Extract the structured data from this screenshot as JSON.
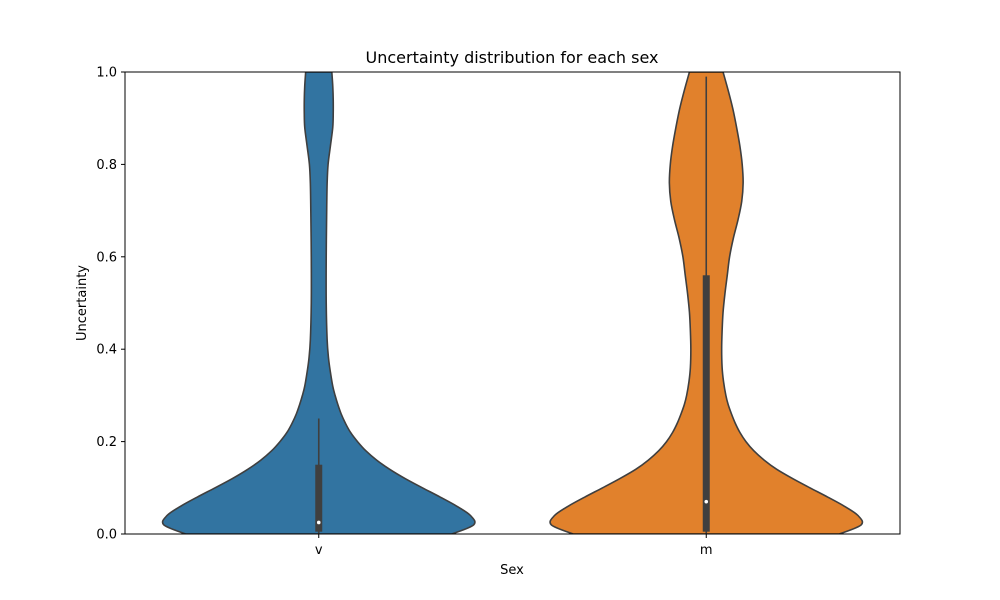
{
  "chart_data": {
    "type": "violin",
    "title": "Uncertainty distribution for each sex",
    "xlabel": "Sex",
    "ylabel": "Uncertainty",
    "ylim": [
      0,
      1
    ],
    "yticks": [
      "0.0",
      "0.2",
      "0.4",
      "0.6",
      "0.8",
      "1.0"
    ],
    "grid": false,
    "categories": [
      "v",
      "m"
    ],
    "series": [
      {
        "category": "v",
        "color": "#3274a1",
        "density": [
          [
            0.0,
            0.285
          ],
          [
            0.02,
            0.332
          ],
          [
            0.04,
            0.325
          ],
          [
            0.06,
            0.296
          ],
          [
            0.08,
            0.26
          ],
          [
            0.1,
            0.222
          ],
          [
            0.12,
            0.185
          ],
          [
            0.14,
            0.152
          ],
          [
            0.16,
            0.124
          ],
          [
            0.18,
            0.101
          ],
          [
            0.2,
            0.083
          ],
          [
            0.22,
            0.068
          ],
          [
            0.24,
            0.057
          ],
          [
            0.26,
            0.048
          ],
          [
            0.28,
            0.041
          ],
          [
            0.3,
            0.035
          ],
          [
            0.32,
            0.03
          ],
          [
            0.35,
            0.025
          ],
          [
            0.38,
            0.021
          ],
          [
            0.42,
            0.018
          ],
          [
            0.5,
            0.016
          ],
          [
            0.6,
            0.016
          ],
          [
            0.7,
            0.017
          ],
          [
            0.76,
            0.018
          ],
          [
            0.8,
            0.02
          ],
          [
            0.84,
            0.025
          ],
          [
            0.88,
            0.03
          ],
          [
            0.91,
            0.031
          ],
          [
            0.94,
            0.031
          ],
          [
            0.97,
            0.03
          ],
          [
            1.0,
            0.028
          ]
        ],
        "median": 0.025,
        "q1": 0.005,
        "q3": 0.15,
        "whisker_low": 0.0,
        "whisker_high": 0.25
      },
      {
        "category": "m",
        "color": "#e1812c",
        "density": [
          [
            0.0,
            0.285
          ],
          [
            0.02,
            0.332
          ],
          [
            0.04,
            0.325
          ],
          [
            0.06,
            0.296
          ],
          [
            0.08,
            0.26
          ],
          [
            0.1,
            0.222
          ],
          [
            0.12,
            0.185
          ],
          [
            0.14,
            0.151
          ],
          [
            0.16,
            0.124
          ],
          [
            0.18,
            0.102
          ],
          [
            0.2,
            0.085
          ],
          [
            0.22,
            0.072
          ],
          [
            0.24,
            0.062
          ],
          [
            0.26,
            0.054
          ],
          [
            0.28,
            0.047
          ],
          [
            0.3,
            0.042
          ],
          [
            0.33,
            0.037
          ],
          [
            0.36,
            0.034
          ],
          [
            0.4,
            0.033
          ],
          [
            0.44,
            0.034
          ],
          [
            0.48,
            0.036
          ],
          [
            0.52,
            0.04
          ],
          [
            0.56,
            0.045
          ],
          [
            0.6,
            0.05
          ],
          [
            0.64,
            0.058
          ],
          [
            0.68,
            0.068
          ],
          [
            0.72,
            0.076
          ],
          [
            0.76,
            0.079
          ],
          [
            0.8,
            0.077
          ],
          [
            0.84,
            0.072
          ],
          [
            0.88,
            0.065
          ],
          [
            0.92,
            0.057
          ],
          [
            0.96,
            0.047
          ],
          [
            1.0,
            0.036
          ]
        ],
        "median": 0.07,
        "q1": 0.005,
        "q3": 0.56,
        "whisker_low": 0.0,
        "whisker_high": 0.99
      }
    ]
  }
}
